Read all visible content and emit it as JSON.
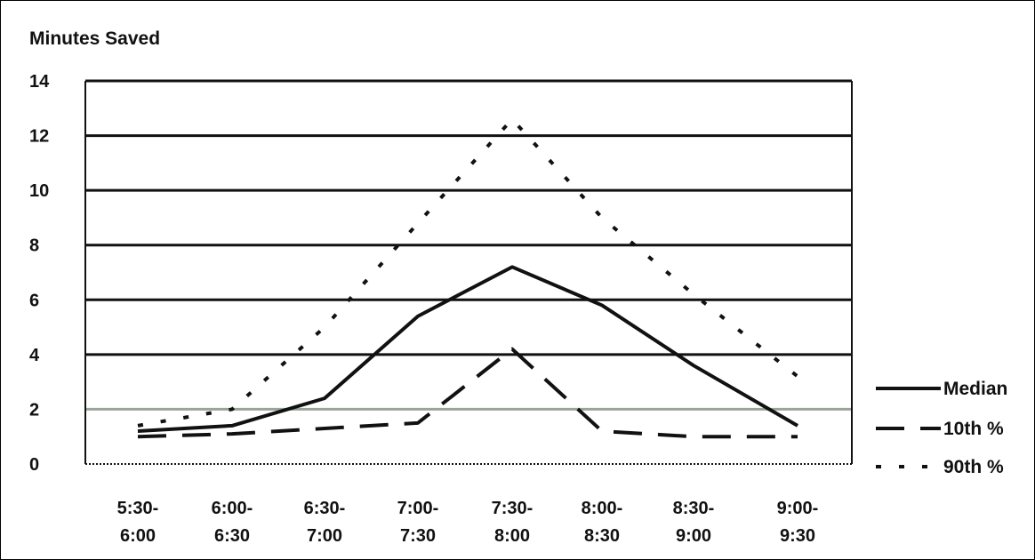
{
  "chart_data": {
    "type": "line",
    "title": "",
    "ylabel": "Minutes Saved",
    "xlabel": "",
    "ylim": [
      0,
      14
    ],
    "yticks": [
      0,
      2,
      4,
      6,
      8,
      10,
      12,
      14
    ],
    "grid": true,
    "legend_position": "right",
    "categories": [
      [
        "5:30-",
        "6:00"
      ],
      [
        "6:00-",
        "6:30"
      ],
      [
        "6:30-",
        "7:00"
      ],
      [
        "7:00-",
        "7:30"
      ],
      [
        "7:30-",
        "8:00"
      ],
      [
        "8:00-",
        "8:30"
      ],
      [
        "8:30-",
        "9:00"
      ],
      [
        "9:00-",
        "9:30"
      ]
    ],
    "series": [
      {
        "name": "Median",
        "style": "solid",
        "values": [
          1.2,
          1.4,
          2.4,
          5.4,
          7.2,
          5.8,
          3.6,
          1.4
        ]
      },
      {
        "name": "10th %",
        "style": "dashed",
        "values": [
          1.0,
          1.1,
          1.3,
          1.5,
          4.2,
          1.2,
          1.0,
          1.0
        ]
      },
      {
        "name": "90th %",
        "style": "dotted",
        "values": [
          1.4,
          2.0,
          5.0,
          8.8,
          12.6,
          9.0,
          6.2,
          3.2
        ]
      }
    ],
    "colors": {
      "line": "#111111",
      "grid": "#111111",
      "grid_2": "#9aa59a"
    }
  }
}
